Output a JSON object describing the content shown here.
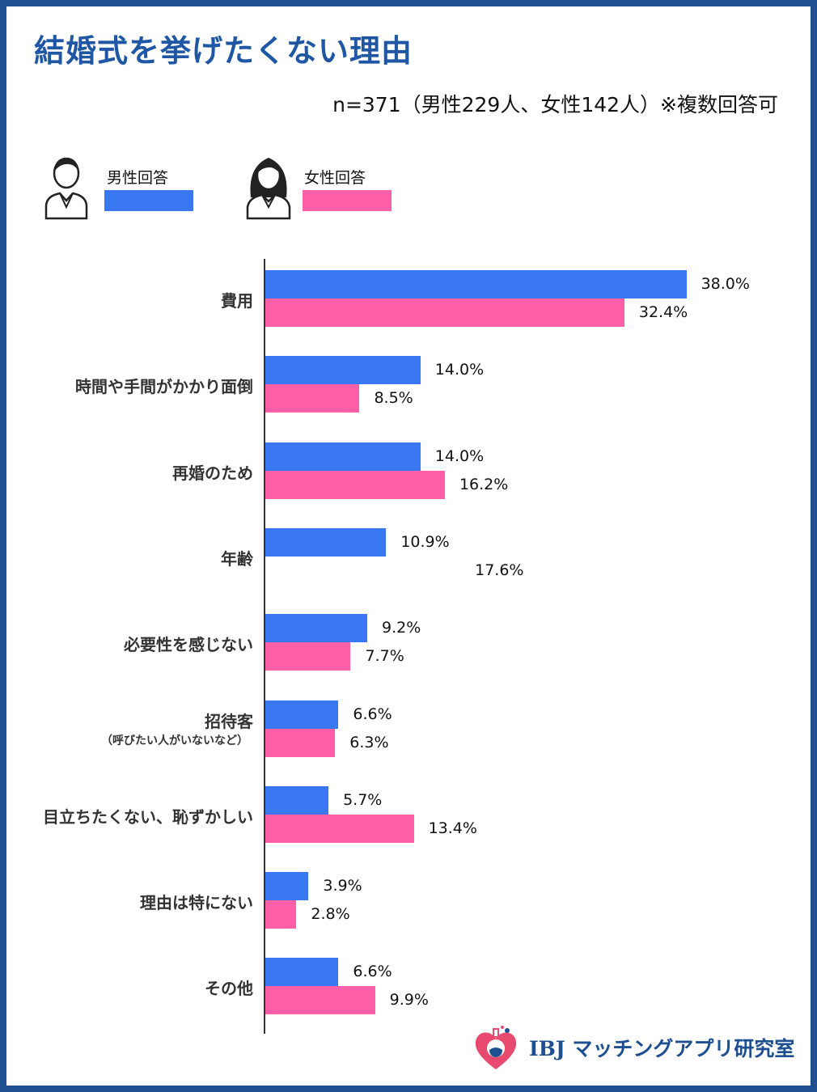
{
  "header": {
    "title": "結婚式を挙げたくない理由",
    "subtitle": "n=371（男性229人、女性142人）※複数回答可"
  },
  "legend": {
    "male_label": "男性回答",
    "female_label": "女性回答",
    "male_icon": "male-person-icon",
    "female_icon": "female-person-icon"
  },
  "colors": {
    "male": "#3a78f2",
    "female": "#ff5fa6",
    "title": "#1f57a5",
    "frame": "#1d4f91"
  },
  "chart_data": {
    "type": "bar",
    "orientation": "horizontal",
    "title": "結婚式を挙げたくない理由",
    "categories": [
      "費用",
      "時間や手間がかかり面倒",
      "再婚のため",
      "年齢",
      "必要性を感じない",
      "招待客",
      "目立ちたくない、恥ずかしい",
      "理由は特にない",
      "その他"
    ],
    "category_notes": [
      "",
      "",
      "",
      "",
      "",
      "（呼びたい人がいないなど）",
      "",
      "",
      ""
    ],
    "series": [
      {
        "name": "男性回答",
        "values": [
          38.0,
          14.0,
          14.0,
          10.9,
          9.2,
          6.6,
          5.7,
          3.9,
          6.6
        ]
      },
      {
        "name": "女性回答",
        "values": [
          32.4,
          8.5,
          16.2,
          17.6,
          7.7,
          6.3,
          13.4,
          2.8,
          9.9
        ]
      }
    ],
    "value_labels": [
      [
        "38.0%",
        "14.0%",
        "14.0%",
        "10.9%",
        "9.2%",
        "6.6%",
        "5.7%",
        "3.9%",
        "6.6%"
      ],
      [
        "32.4%",
        "8.5%",
        "16.2%",
        "17.6%",
        "7.7%",
        "6.3%",
        "13.4%",
        "2.8%",
        "9.9%"
      ]
    ],
    "unit": "%",
    "xlim": [
      0,
      40
    ],
    "grid": false,
    "legend_position": "top-left"
  },
  "logo": {
    "text": "IBJ マッチングアプリ研究室",
    "icon": "heart-flask-logo-icon"
  }
}
